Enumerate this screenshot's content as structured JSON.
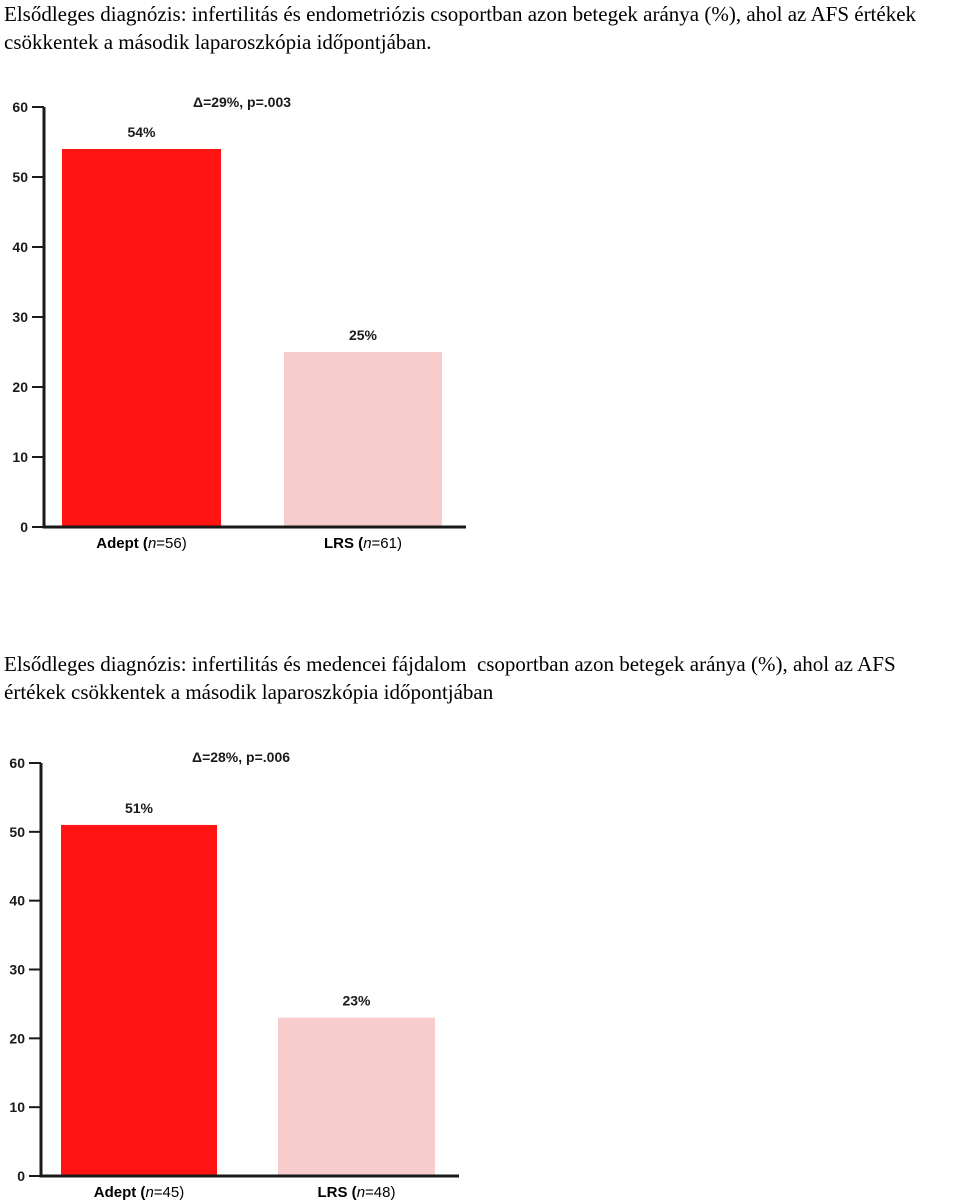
{
  "captions": [
    "Elsődleges diagnózis: infertilitás és endometriózis csoportban azon betegek aránya (%), ahol az AFS értékek csökkentek a második laparoszkópia időpontjában.",
    "Elsődleges diagnózis: infertilitás és medencei fájdalom  csoportban azon betegek aránya (%), ahol az AFS értékek csökkentek a második laparoszkópia időpontjában"
  ],
  "chart_data": [
    {
      "type": "bar",
      "categories": [
        {
          "name": "Adept",
          "n_prefix": " (",
          "n_italic": "n",
          "n_suffix": "=56)"
        },
        {
          "name": "LRS",
          "n_prefix": " (",
          "n_italic": "n",
          "n_suffix": "=61)"
        }
      ],
      "values": [
        54,
        25
      ],
      "value_labels": [
        "54%",
        "25%"
      ],
      "colors": [
        "#ff1313",
        "#f6cccc"
      ],
      "annotation": "Δ=29%, p=.003",
      "yticks": [
        "0",
        "10",
        "20",
        "30",
        "40",
        "50",
        "60"
      ],
      "ylim": [
        0,
        60
      ],
      "grid": false,
      "title": "",
      "xlabel": "",
      "ylabel": ""
    },
    {
      "type": "bar",
      "categories": [
        {
          "name": "Adept",
          "n_prefix": " (",
          "n_italic": "n",
          "n_suffix": "=45)"
        },
        {
          "name": "LRS",
          "n_prefix": " (",
          "n_italic": "n",
          "n_suffix": "=48)"
        }
      ],
      "values": [
        51,
        23
      ],
      "value_labels": [
        "51%",
        "23%"
      ],
      "colors": [
        "#ff1313",
        "#f6cccc"
      ],
      "annotation": "Δ=28%, p=.006",
      "yticks": [
        "0",
        "10",
        "20",
        "30",
        "40",
        "50",
        "60"
      ],
      "ylim": [
        0,
        60
      ],
      "grid": false,
      "title": "",
      "xlabel": "",
      "ylabel": ""
    }
  ]
}
